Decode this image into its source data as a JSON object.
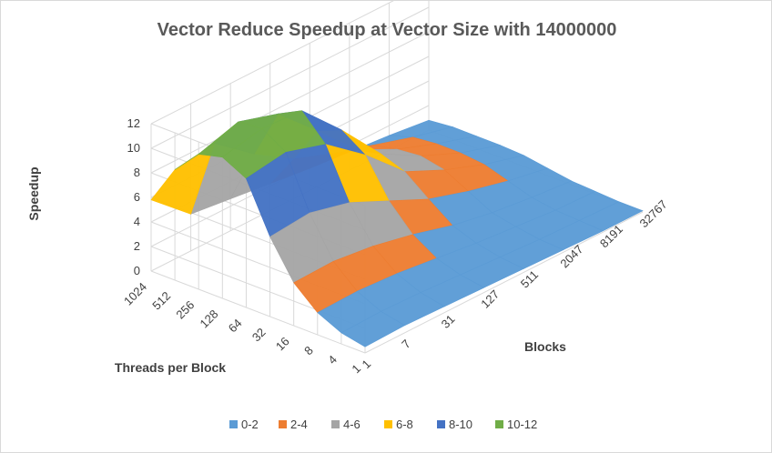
{
  "chart_data": {
    "type": "surface",
    "title": "Vector Reduce Speedup at Vector Size with 14000000",
    "zlabel": "Speedup",
    "xlabel": "Threads per Block",
    "ylabel": "Blocks",
    "zlim": [
      0,
      12
    ],
    "z_ticks": [
      0,
      2,
      4,
      6,
      8,
      10,
      12
    ],
    "threads_per_block": [
      "1024",
      "512",
      "256",
      "128",
      "64",
      "32",
      "16",
      "8",
      "4",
      "1"
    ],
    "blocks": [
      "1",
      "7",
      "31",
      "127",
      "511",
      "2047",
      "8191",
      "32767"
    ],
    "legend": [
      {
        "label": "0-2",
        "color": "#5b9bd5"
      },
      {
        "label": "2-4",
        "color": "#ed7d31"
      },
      {
        "label": "4-6",
        "color": "#a5a5a5"
      },
      {
        "label": "6-8",
        "color": "#ffc000"
      },
      {
        "label": "8-10",
        "color": "#4472c4"
      },
      {
        "label": "10-12",
        "color": "#70ad47"
      }
    ],
    "legend_position": "bottom",
    "grid": true,
    "surface_values": [
      [
        5.8,
        3.0,
        2.6,
        2.2,
        1.8,
        1.5,
        1.2,
        0.8
      ],
      [
        9.0,
        9.5,
        7.0,
        5.0,
        3.8,
        2.8,
        1.8,
        1.0
      ],
      [
        11.0,
        12.0,
        11.0,
        8.0,
        4.8,
        3.2,
        2.0,
        1.0
      ],
      [
        11.5,
        12.2,
        12.0,
        8.8,
        5.2,
        3.4,
        2.0,
        1.0
      ],
      [
        10.5,
        11.0,
        10.0,
        7.5,
        4.5,
        3.0,
        1.8,
        0.9
      ],
      [
        6.5,
        6.8,
        6.0,
        4.5,
        3.0,
        2.0,
        1.2,
        0.6
      ],
      [
        3.5,
        3.6,
        3.2,
        2.5,
        1.6,
        1.0,
        0.6,
        0.3
      ],
      [
        1.8,
        1.9,
        1.7,
        1.3,
        0.9,
        0.6,
        0.3,
        0.2
      ],
      [
        0.9,
        1.0,
        0.9,
        0.7,
        0.5,
        0.3,
        0.2,
        0.1
      ],
      [
        0.5,
        0.6,
        0.5,
        0.4,
        0.3,
        0.2,
        0.1,
        0.1
      ]
    ]
  }
}
